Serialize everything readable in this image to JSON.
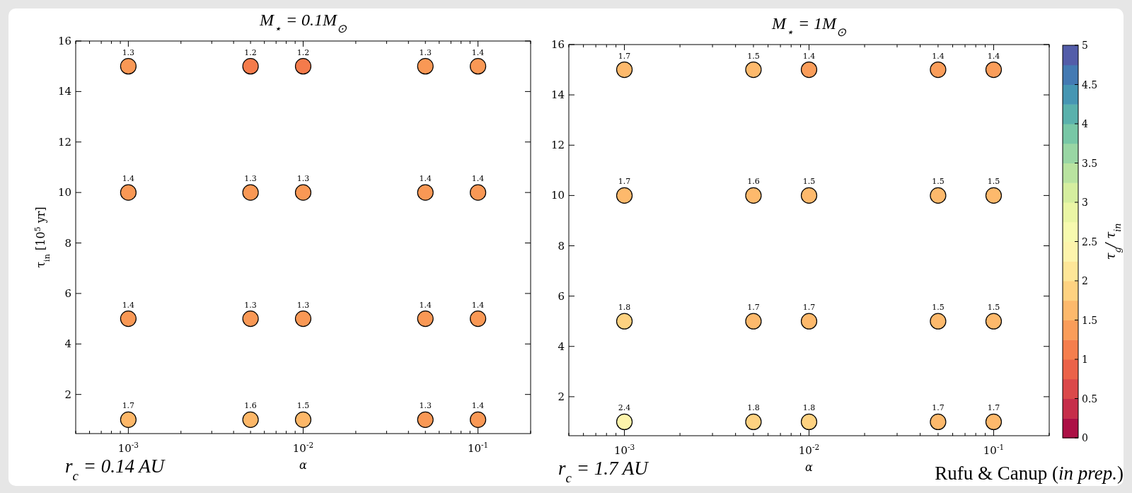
{
  "chart_data": [
    {
      "type": "scatter",
      "title": "M$_{⋆}$ = 0.1M$_{⊙}$",
      "xlabel": "α",
      "ylabel": "τ$_{in}$ [10$^{5}$ yr]",
      "log": "x",
      "marker": "circle",
      "xlim": [
        0.0005,
        0.2
      ],
      "ylim": [
        0.45,
        16
      ],
      "xticks": [
        {
          "value": 0.0005,
          "label": null
        },
        {
          "value": 0.0006,
          "label": null
        },
        {
          "value": 0.0007,
          "label": null
        },
        {
          "value": 0.0008,
          "label": null
        },
        {
          "value": 0.0009,
          "label": null
        },
        {
          "value": 0.001,
          "label": "10$^{-3}$"
        },
        {
          "value": 0.002,
          "label": null
        },
        {
          "value": 0.003,
          "label": null
        },
        {
          "value": 0.004,
          "label": null
        },
        {
          "value": 0.005,
          "label": null
        },
        {
          "value": 0.006,
          "label": null
        },
        {
          "value": 0.007,
          "label": null
        },
        {
          "value": 0.008,
          "label": null
        },
        {
          "value": 0.009,
          "label": null
        },
        {
          "value": 0.01,
          "label": "10$^{-2}$"
        },
        {
          "value": 0.02,
          "label": null
        },
        {
          "value": 0.03,
          "label": null
        },
        {
          "value": 0.04,
          "label": null
        },
        {
          "value": 0.05,
          "label": null
        },
        {
          "value": 0.06,
          "label": null
        },
        {
          "value": 0.07,
          "label": null
        },
        {
          "value": 0.08,
          "label": null
        },
        {
          "value": 0.09,
          "label": null
        },
        {
          "value": 0.1,
          "label": "10$^{-1}$"
        },
        {
          "value": 0.2,
          "label": null
        }
      ],
      "yticks": [
        2,
        4,
        6,
        8,
        10,
        12,
        14,
        16
      ],
      "annotations": [
        "r$_{c}$ = 0.14 AU",
        {
          "text": "1.3",
          "x": 0.001,
          "y": 15
        },
        {
          "text": "1.2",
          "x": 0.005,
          "y": 15
        },
        {
          "text": "1.2",
          "x": 0.01,
          "y": 15
        },
        {
          "text": "1.3",
          "x": 0.05,
          "y": 15
        },
        {
          "text": "1.4",
          "x": 0.1,
          "y": 15
        },
        {
          "text": "1.4",
          "x": 0.001,
          "y": 10
        },
        {
          "text": "1.3",
          "x": 0.005,
          "y": 10
        },
        {
          "text": "1.3",
          "x": 0.01,
          "y": 10
        },
        {
          "text": "1.4",
          "x": 0.05,
          "y": 10
        },
        {
          "text": "1.4",
          "x": 0.1,
          "y": 10
        },
        {
          "text": "1.4",
          "x": 0.001,
          "y": 5
        },
        {
          "text": "1.3",
          "x": 0.005,
          "y": 5
        },
        {
          "text": "1.3",
          "x": 0.01,
          "y": 5
        },
        {
          "text": "1.4",
          "x": 0.05,
          "y": 5
        },
        {
          "text": "1.4",
          "x": 0.1,
          "y": 5
        },
        {
          "text": "1.7",
          "x": 0.001,
          "y": 1
        },
        {
          "text": "1.6",
          "x": 0.005,
          "y": 1
        },
        {
          "text": "1.5",
          "x": 0.01,
          "y": 1
        },
        {
          "text": "1.3",
          "x": 0.05,
          "y": 1
        },
        {
          "text": "1.4",
          "x": 0.1,
          "y": 1
        }
      ],
      "series": [
        {
          "x": [
            0.001,
            0.005,
            0.01,
            0.05,
            0.1,
            0.001,
            0.005,
            0.01,
            0.05,
            0.1,
            0.001,
            0.005,
            0.01,
            0.05,
            0.1,
            0.001,
            0.005,
            0.01,
            0.05,
            0.1
          ],
          "values": [
            15,
            15,
            15,
            15,
            15,
            10,
            10,
            10,
            10,
            10,
            5,
            5,
            5,
            5,
            5,
            1,
            1,
            1,
            1,
            1
          ],
          "colors": [
            "#f99855",
            "#f47b4b",
            "#f47b4b",
            "#f99855",
            "#f99855",
            "#f99855",
            "#f99855",
            "#f99855",
            "#f99855",
            "#f99855",
            "#f99855",
            "#f99855",
            "#f99855",
            "#f99855",
            "#f99855",
            "#fdb768",
            "#fdb768",
            "#fdb768",
            "#f99855",
            "#f99855"
          ]
        }
      ]
    },
    {
      "type": "scatter",
      "title": "M$_{⋆}$ = 1M$_{⊙}$",
      "xlabel": "α",
      "clabel": "τ$_{g}$/ τ$_{in}$",
      "log": "x",
      "marker": "circle",
      "xlim": [
        0.0005,
        0.2
      ],
      "ylim": [
        0.45,
        16
      ],
      "xticks": [
        {
          "value": 0.0005,
          "label": null
        },
        {
          "value": 0.0006,
          "label": null
        },
        {
          "value": 0.0007,
          "label": null
        },
        {
          "value": 0.0008,
          "label": null
        },
        {
          "value": 0.0009,
          "label": null
        },
        {
          "value": 0.001,
          "label": "10$^{-3}$"
        },
        {
          "value": 0.002,
          "label": null
        },
        {
          "value": 0.003,
          "label": null
        },
        {
          "value": 0.004,
          "label": null
        },
        {
          "value": 0.005,
          "label": null
        },
        {
          "value": 0.006,
          "label": null
        },
        {
          "value": 0.007,
          "label": null
        },
        {
          "value": 0.008,
          "label": null
        },
        {
          "value": 0.009,
          "label": null
        },
        {
          "value": 0.01,
          "label": "10$^{-2}$"
        },
        {
          "value": 0.02,
          "label": null
        },
        {
          "value": 0.03,
          "label": null
        },
        {
          "value": 0.04,
          "label": null
        },
        {
          "value": 0.05,
          "label": null
        },
        {
          "value": 0.06,
          "label": null
        },
        {
          "value": 0.07,
          "label": null
        },
        {
          "value": 0.08,
          "label": null
        },
        {
          "value": 0.09,
          "label": null
        },
        {
          "value": 0.1,
          "label": "10$^{-1}$"
        },
        {
          "value": 0.2,
          "label": null
        }
      ],
      "yticks": [
        2,
        4,
        6,
        8,
        10,
        12,
        14,
        16
      ],
      "clim": [
        0,
        5
      ],
      "cticks": [
        0,
        0.5,
        1,
        1.5,
        2,
        2.5,
        3,
        3.5,
        4,
        4.5,
        5
      ],
      "annotations": [
        "r$_{c}$ = 1.7 AU",
        "Rufu & Canup (in prep.)",
        {
          "text": "1.7",
          "x": 0.001,
          "y": 15
        },
        {
          "text": "1.5",
          "x": 0.005,
          "y": 15
        },
        {
          "text": "1.4",
          "x": 0.01,
          "y": 15
        },
        {
          "text": "1.4",
          "x": 0.05,
          "y": 15
        },
        {
          "text": "1.4",
          "x": 0.1,
          "y": 15
        },
        {
          "text": "1.7",
          "x": 0.001,
          "y": 10
        },
        {
          "text": "1.6",
          "x": 0.005,
          "y": 10
        },
        {
          "text": "1.5",
          "x": 0.01,
          "y": 10
        },
        {
          "text": "1.5",
          "x": 0.05,
          "y": 10
        },
        {
          "text": "1.5",
          "x": 0.1,
          "y": 10
        },
        {
          "text": "1.8",
          "x": 0.001,
          "y": 5
        },
        {
          "text": "1.7",
          "x": 0.005,
          "y": 5
        },
        {
          "text": "1.7",
          "x": 0.01,
          "y": 5
        },
        {
          "text": "1.5",
          "x": 0.05,
          "y": 5
        },
        {
          "text": "1.5",
          "x": 0.1,
          "y": 5
        },
        {
          "text": "2.4",
          "x": 0.001,
          "y": 1
        },
        {
          "text": "1.8",
          "x": 0.005,
          "y": 1
        },
        {
          "text": "1.8",
          "x": 0.01,
          "y": 1
        },
        {
          "text": "1.7",
          "x": 0.05,
          "y": 1
        },
        {
          "text": "1.7",
          "x": 0.1,
          "y": 1
        }
      ],
      "series": [
        {
          "x": [
            0.001,
            0.005,
            0.01,
            0.05,
            0.1,
            0.001,
            0.005,
            0.01,
            0.05,
            0.1,
            0.001,
            0.005,
            0.01,
            0.05,
            0.1,
            0.001,
            0.005,
            0.01,
            0.05,
            0.1
          ],
          "values": [
            15,
            15,
            15,
            15,
            15,
            10,
            10,
            10,
            10,
            10,
            5,
            5,
            5,
            5,
            5,
            1,
            1,
            1,
            1,
            1
          ],
          "cvalues": [
            1.7,
            1.5,
            1.4,
            1.4,
            1.4,
            1.7,
            1.6,
            1.5,
            1.5,
            1.5,
            1.8,
            1.7,
            1.7,
            1.5,
            1.5,
            2.4,
            1.8,
            1.8,
            1.7,
            1.7
          ]
        }
      ]
    }
  ]
}
